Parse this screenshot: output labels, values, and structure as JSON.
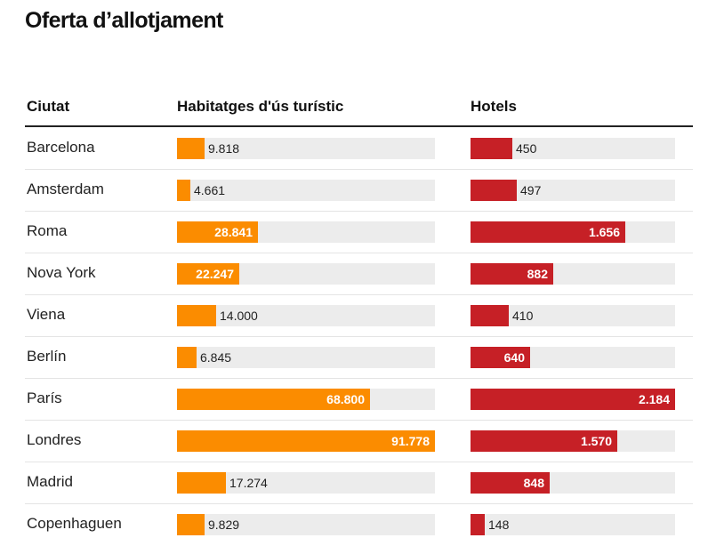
{
  "title": "Oferta d’allotjament",
  "headers": {
    "city": "Ciutat",
    "tourist": "Habitatges d'ús turístic",
    "hotels": "Hotels"
  },
  "colors": {
    "tourist": "#fb8c00",
    "hotels": "#c62026",
    "track": "#ececec"
  },
  "chart_data": {
    "type": "bar",
    "categories": [
      "Barcelona",
      "Amsterdam",
      "Roma",
      "Nova York",
      "Viena",
      "Berlín",
      "París",
      "Londres",
      "Madrid",
      "Copenhaguen"
    ],
    "series": [
      {
        "name": "Habitatges d'ús turístic",
        "values": [
          9818,
          4661,
          28841,
          22247,
          14000,
          6845,
          68800,
          91778,
          17274,
          9829
        ],
        "labels": [
          "9.818",
          "4.661",
          "28.841",
          "22.247",
          "14.000",
          "6.845",
          "68.800",
          "91.778",
          "17.274",
          "9.829"
        ],
        "max": 91778
      },
      {
        "name": "Hotels",
        "values": [
          450,
          497,
          1656,
          882,
          410,
          640,
          2184,
          1570,
          848,
          148
        ],
        "labels": [
          "450",
          "497",
          "1.656",
          "882",
          "410",
          "640",
          "2.184",
          "1.570",
          "848",
          "148"
        ],
        "max": 2184
      }
    ]
  }
}
